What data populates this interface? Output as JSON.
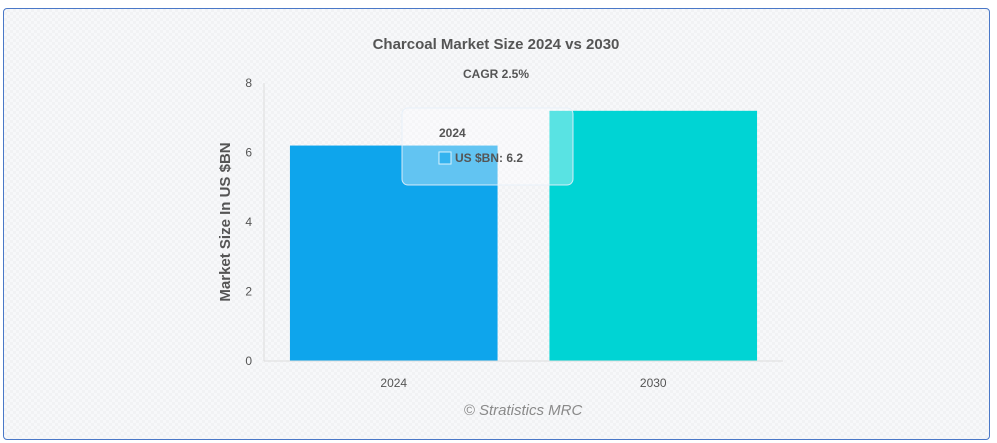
{
  "chart_data": {
    "type": "bar",
    "title": "Charcoal Market Size 2024 vs 2030",
    "subtitle": "CAGR 2.5%",
    "categories": [
      "2024",
      "2030"
    ],
    "series": [
      {
        "name": "US $BN",
        "values": [
          6.2,
          7.2
        ]
      }
    ],
    "bar_colors": [
      "#0ea5ec",
      "#00d4d4"
    ],
    "xlabel": "",
    "ylabel": "Market Size In US $BN",
    "ylim": [
      0,
      8
    ],
    "yticks": [
      "0",
      "2",
      "4",
      "6",
      "8"
    ],
    "grid": false,
    "legend": "none",
    "credit": "© Stratistics MRC"
  },
  "tooltip": {
    "title": "2024",
    "series_label": "US $BN",
    "value": "6.2",
    "separator": ": "
  }
}
